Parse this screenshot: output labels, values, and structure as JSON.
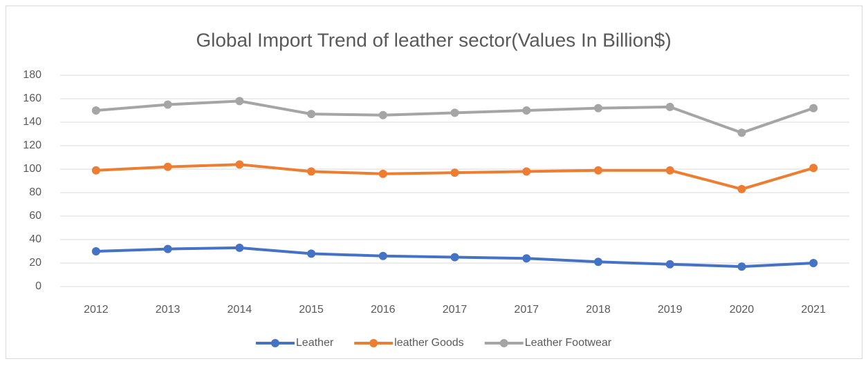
{
  "chart_data": {
    "type": "line",
    "title": "Global Import Trend of leather sector(Values In Billion$)",
    "categories": [
      "2012",
      "2013",
      "2014",
      "2015",
      "2016",
      "2017",
      "2017",
      "2018",
      "2019",
      "2020",
      "2021"
    ],
    "series": [
      {
        "name": "Leather",
        "color": "#4472c4",
        "values": [
          30,
          32,
          33,
          28,
          26,
          25,
          24,
          21,
          19,
          17,
          20
        ]
      },
      {
        "name": "leather Goods",
        "color": "#ed7d31",
        "values": [
          99,
          102,
          104,
          98,
          96,
          97,
          98,
          99,
          99,
          83,
          101
        ]
      },
      {
        "name": "Leather Footwear",
        "color": "#a5a5a5",
        "values": [
          150,
          155,
          158,
          147,
          146,
          148,
          150,
          152,
          153,
          131,
          152
        ]
      }
    ],
    "ylim": [
      0,
      180
    ],
    "yticks": [
      0,
      20,
      40,
      60,
      80,
      100,
      120,
      140,
      160,
      180
    ],
    "grid": true,
    "legend": "bottom"
  }
}
